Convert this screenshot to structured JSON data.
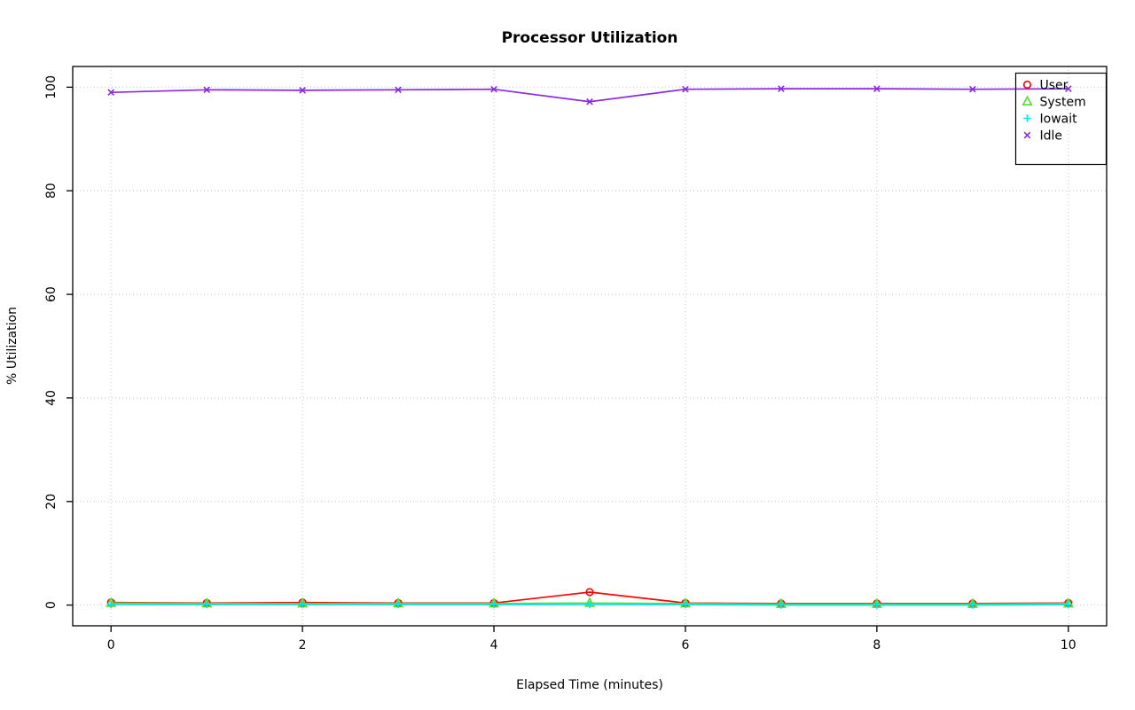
{
  "chart_data": {
    "type": "line",
    "title": "Processor Utilization",
    "xlabel": "Elapsed Time (minutes)",
    "ylabel": "% Utilization",
    "x": [
      0,
      1,
      2,
      3,
      4,
      5,
      6,
      7,
      8,
      9,
      10
    ],
    "xlim": [
      0,
      10
    ],
    "ylim": [
      0,
      100
    ],
    "xticks": [
      0,
      2,
      4,
      6,
      8,
      10
    ],
    "yticks": [
      0,
      20,
      40,
      60,
      80,
      100
    ],
    "grid": true,
    "grid_style": "dotted",
    "grid_color": "#c8c8c8",
    "axis_color": "#000000",
    "background_color": "#ffffff",
    "legend_position": "top-right",
    "series": [
      {
        "name": "User",
        "color": "#ff0000",
        "marker": "circle",
        "values": [
          0.5,
          0.4,
          0.5,
          0.4,
          0.4,
          2.5,
          0.4,
          0.3,
          0.3,
          0.3,
          0.4
        ]
      },
      {
        "name": "System",
        "color": "#55dd33",
        "marker": "triangle",
        "values": [
          0.4,
          0.3,
          0.3,
          0.3,
          0.3,
          0.4,
          0.3,
          0.2,
          0.2,
          0.2,
          0.3
        ]
      },
      {
        "name": "Iowait",
        "color": "#00e5ee",
        "marker": "plus",
        "values": [
          0.1,
          0.1,
          0.1,
          0.1,
          0.1,
          0.1,
          0.1,
          0.0,
          0.0,
          0.0,
          0.1
        ]
      },
      {
        "name": "Idle",
        "color": "#8a2be2",
        "marker": "x",
        "values": [
          99.0,
          99.5,
          99.4,
          99.5,
          99.6,
          97.2,
          99.6,
          99.7,
          99.7,
          99.6,
          99.7
        ]
      }
    ]
  }
}
